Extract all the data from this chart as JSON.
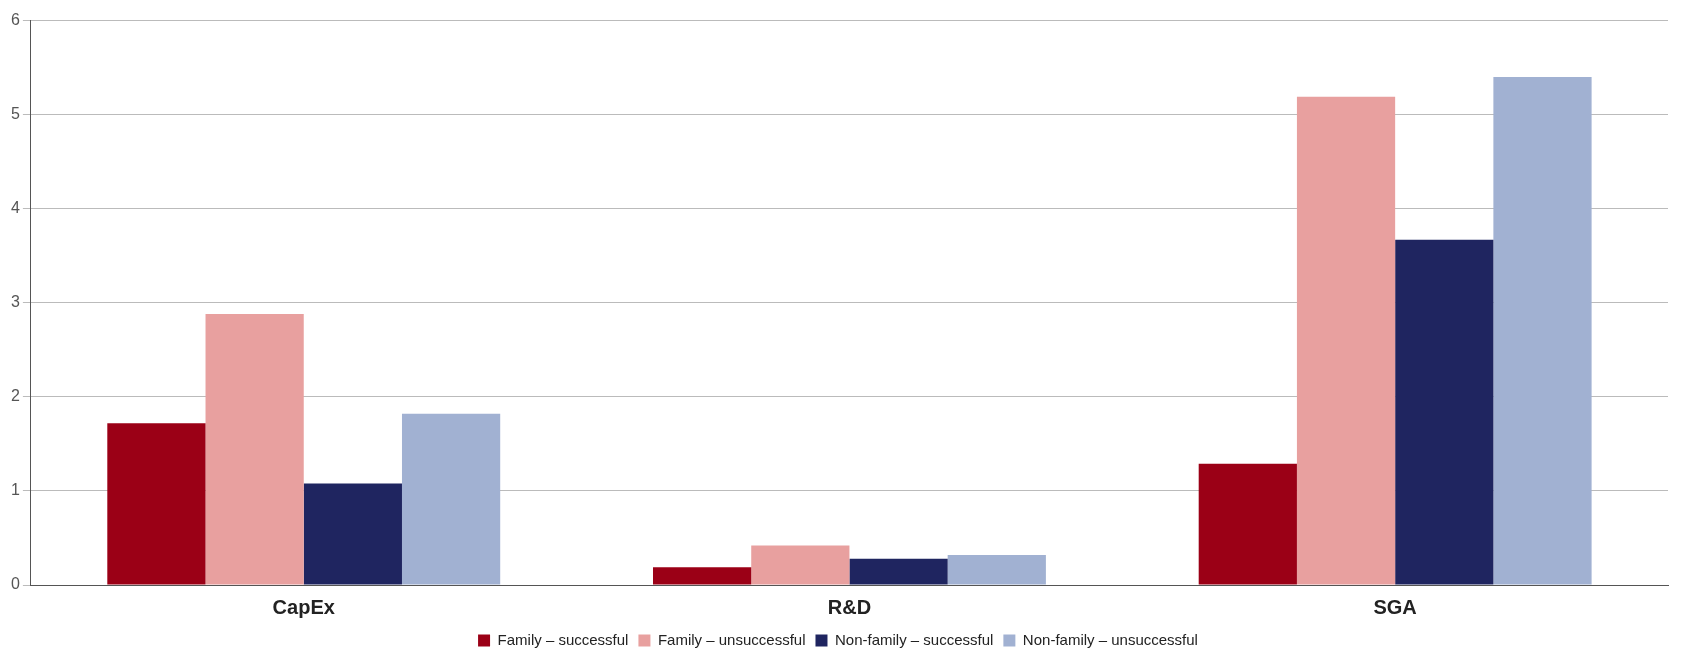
{
  "chart_data": {
    "type": "bar",
    "categories": [
      "CapEx",
      "R&D",
      "SGA"
    ],
    "series": [
      {
        "name": "Family – successful",
        "color": "#9b0016",
        "values": [
          1.72,
          0.19,
          1.29
        ]
      },
      {
        "name": "Family – unsuccessful",
        "color": "#e8a09f",
        "values": [
          2.88,
          0.42,
          5.19
        ]
      },
      {
        "name": "Non-family – successful",
        "color": "#1f2560",
        "values": [
          1.08,
          0.28,
          3.67
        ]
      },
      {
        "name": "Non-family – unsuccessful",
        "color": "#a1b1d2",
        "values": [
          1.82,
          0.32,
          5.4
        ]
      }
    ],
    "ylim": [
      0,
      6
    ],
    "yticks": [
      0,
      1,
      2,
      3,
      4,
      5,
      6
    ],
    "grid": "y",
    "legend": "bottom"
  }
}
